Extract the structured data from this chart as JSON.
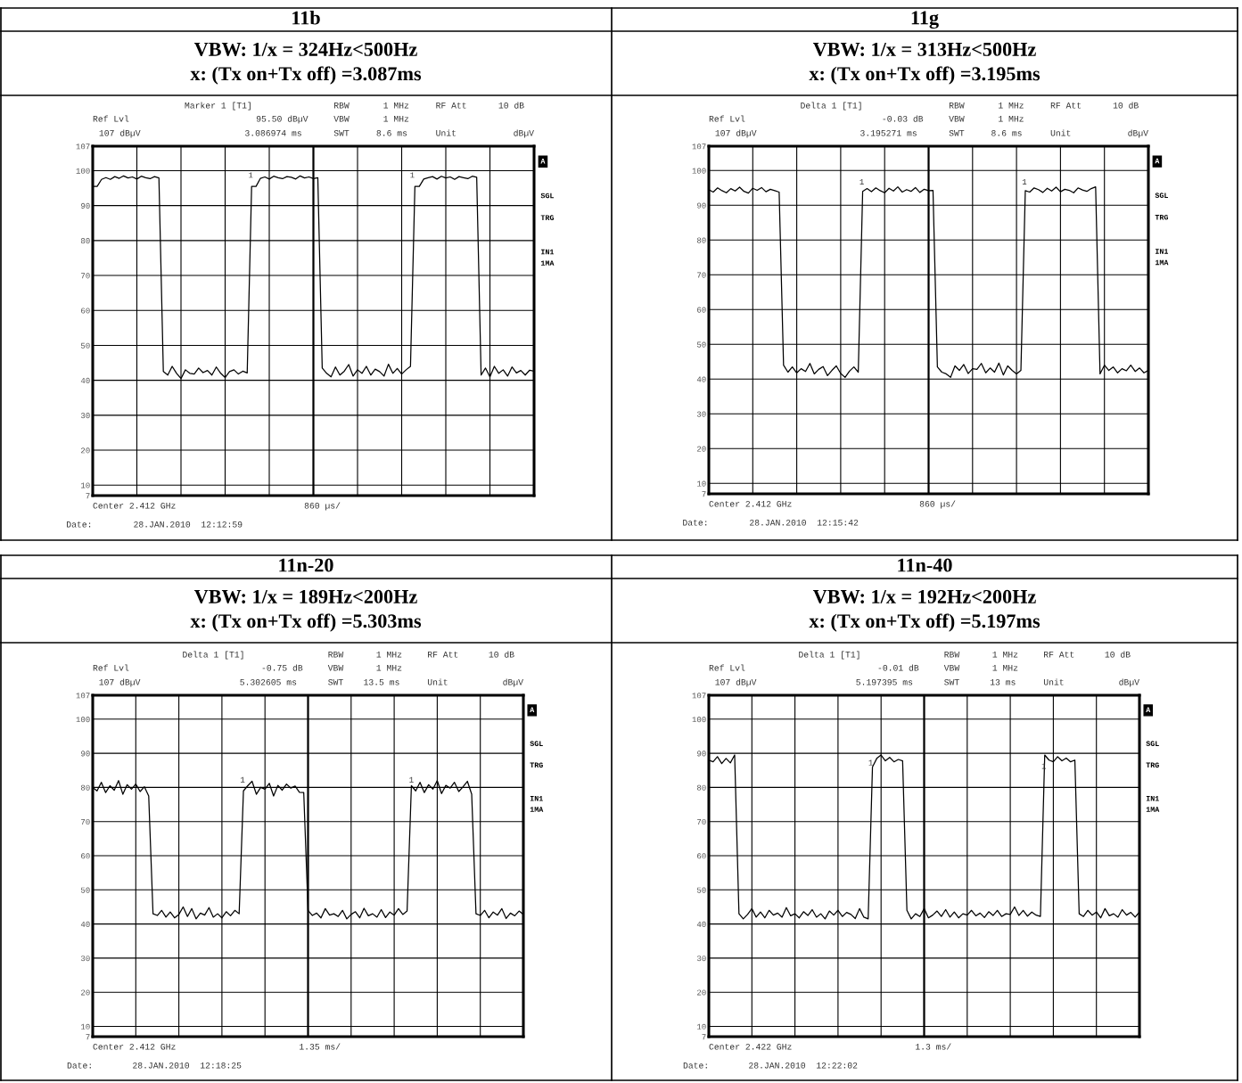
{
  "chart_data": [
    {
      "type": "line",
      "title": "11b",
      "subtitle": "VBW: 1/x = 324Hz<500Hz\nx: (Tx on+Tx off) =3.087ms",
      "color": "#000000",
      "ylim": [
        7,
        107
      ],
      "yticks": [
        7,
        10,
        20,
        30,
        40,
        50,
        60,
        70,
        80,
        90,
        100,
        107
      ],
      "grid": true,
      "tick_labels": "y",
      "categories": [
        null,
        null,
        null,
        null,
        null,
        null,
        null,
        null,
        null,
        null,
        null,
        null,
        null,
        null,
        null,
        null,
        null,
        null,
        null,
        null,
        null,
        null,
        null,
        null,
        null,
        null,
        null,
        null,
        null,
        null,
        null,
        null,
        null,
        null,
        null,
        null,
        null,
        null,
        null,
        null,
        null,
        null,
        null,
        null,
        null,
        null,
        null,
        null,
        null,
        null,
        null,
        null,
        null,
        null,
        null,
        null,
        null,
        null,
        null,
        null,
        null,
        null,
        null,
        null,
        null,
        null,
        null,
        null,
        null,
        null,
        null,
        null,
        null,
        null,
        null,
        null,
        null,
        null,
        null,
        null,
        null,
        null,
        null,
        null,
        null,
        null,
        null,
        null,
        null,
        null,
        null,
        null,
        null,
        null,
        null,
        null,
        null,
        null,
        null,
        null,
        null
      ],
      "values": [
        95.5,
        95.5,
        97.5,
        98,
        97.5,
        98.3,
        97.8,
        98.5,
        97.9,
        98.2,
        97.6,
        98.4,
        98,
        97.7,
        98.3,
        97.9,
        42.5,
        41.5,
        44,
        42,
        40.5,
        43,
        42,
        41.8,
        43.5,
        42.2,
        42.8,
        41.5,
        43.8,
        42,
        40.8,
        42.5,
        43,
        41.8,
        42.6,
        42.1,
        95.5,
        95.5,
        97.8,
        98.2,
        97.6,
        98.4,
        98,
        97.7,
        98.3,
        98.1,
        97.6,
        98.5,
        97.9,
        98.2,
        97.7,
        98,
        43.5,
        42,
        41,
        43.8,
        41.5,
        42.6,
        44.5,
        41.2,
        43,
        42,
        44,
        41.5,
        43.2,
        42.5,
        41.2,
        44.6,
        42,
        43.4,
        41.8,
        43,
        44,
        95.5,
        95.5,
        97.6,
        98,
        98.3,
        97.6,
        98.4,
        97.9,
        98.2,
        97.5,
        98.3,
        98,
        97.7,
        98.4,
        98.1,
        41.5,
        43.5,
        41,
        44,
        42,
        43,
        41.2,
        43.8,
        42.1,
        42.8,
        41.5,
        42.9,
        42.6
      ],
      "annotations": [
        "Marker 1 [T1]",
        "RBW",
        "1 MHz",
        "RF Att",
        "10 dB",
        "Ref Lvl",
        "95.50 dBµV",
        "VBW",
        "1 MHz",
        "107 dBµV",
        "3.086974 ms",
        "SWT",
        "8.6 ms",
        "Unit",
        "dBµV",
        "A",
        "SGL",
        "TRG",
        "IN1",
        "1MA",
        "Center 2.412 GHz",
        "860 µs/",
        "Date:",
        "28.JAN.2010  12:12:59",
        "1",
        "1"
      ]
    },
    {
      "type": "line",
      "title": "11g",
      "subtitle": "VBW: 1/x = 313Hz<500Hz\nx: (Tx on+Tx off) =3.195ms",
      "color": "#000000",
      "ylim": [
        7,
        107
      ],
      "yticks": [
        7,
        10,
        20,
        30,
        40,
        50,
        60,
        70,
        80,
        90,
        100,
        107
      ],
      "grid": true,
      "tick_labels": "y",
      "categories": [
        null,
        null,
        null,
        null,
        null,
        null,
        null,
        null,
        null,
        null,
        null,
        null,
        null,
        null,
        null,
        null,
        null,
        null,
        null,
        null,
        null,
        null,
        null,
        null,
        null,
        null,
        null,
        null,
        null,
        null,
        null,
        null,
        null,
        null,
        null,
        null,
        null,
        null,
        null,
        null,
        null,
        null,
        null,
        null,
        null,
        null,
        null,
        null,
        null,
        null,
        null,
        null,
        null,
        null,
        null,
        null,
        null,
        null,
        null,
        null,
        null,
        null,
        null,
        null,
        null,
        null,
        null,
        null,
        null,
        null,
        null,
        null,
        null,
        null,
        null,
        null,
        null,
        null,
        null,
        null,
        null,
        null,
        null,
        null,
        null,
        null,
        null,
        null,
        null,
        null,
        null,
        null,
        null,
        null,
        null,
        null,
        null,
        null,
        null,
        null,
        null
      ],
      "values": [
        94.5,
        93.8,
        95,
        94.2,
        93.6,
        94.8,
        94.1,
        95.2,
        94,
        93.5,
        94.9,
        94.3,
        95.1,
        93.9,
        94.6,
        94.2,
        93.8,
        44,
        42,
        43.5,
        41.8,
        43,
        42.2,
        44.5,
        41.5,
        42.8,
        43.6,
        41,
        42.5,
        43.8,
        41.6,
        40.5,
        42.3,
        43.5,
        42,
        94,
        94.8,
        93.9,
        95,
        94.2,
        93.6,
        94.9,
        94.1,
        95.3,
        93.8,
        94.5,
        94,
        95.1,
        93.7,
        94.6,
        94.2,
        94.3,
        43.5,
        42,
        41.5,
        40.5,
        43.8,
        42.5,
        44.2,
        41.6,
        43,
        42.8,
        44.5,
        41.8,
        43.2,
        42,
        44.6,
        41.2,
        43.8,
        42.5,
        41.5,
        42.5,
        94.2,
        93.8,
        95,
        94.5,
        93.7,
        94.9,
        94.1,
        95.2,
        93.9,
        94.6,
        94.3,
        93.6,
        95,
        94.4,
        94,
        94.8,
        95.3,
        41.5,
        44,
        42.5,
        43.5,
        41.8,
        43,
        42.4,
        44,
        42.2,
        43.2,
        41.8,
        42.5
      ],
      "annotations": [
        "Delta 1 [T1]",
        "RBW",
        "1 MHz",
        "RF Att",
        "10 dB",
        "Ref Lvl",
        "-0.03 dB",
        "VBW",
        "1 MHz",
        "107 dBµV",
        "3.195271 ms",
        "SWT",
        "8.6 ms",
        "Unit",
        "dBµV",
        "A",
        "SGL",
        "TRG",
        "IN1",
        "1MA",
        "Center 2.412 GHz",
        "860 µs/",
        "Date:",
        "28.JAN.2010  12:15:42",
        "1",
        "1"
      ]
    },
    {
      "type": "line",
      "title": "11n-20",
      "subtitle": "VBW: 1/x = 189Hz<200Hz\nx: (Tx on+Tx off) =5.303ms",
      "color": "#000000",
      "ylim": [
        7,
        107
      ],
      "yticks": [
        7,
        10,
        20,
        30,
        40,
        50,
        60,
        70,
        80,
        90,
        100,
        107
      ],
      "grid": true,
      "tick_labels": "y",
      "categories": [
        null,
        null,
        null,
        null,
        null,
        null,
        null,
        null,
        null,
        null,
        null,
        null,
        null,
        null,
        null,
        null,
        null,
        null,
        null,
        null,
        null,
        null,
        null,
        null,
        null,
        null,
        null,
        null,
        null,
        null,
        null,
        null,
        null,
        null,
        null,
        null,
        null,
        null,
        null,
        null,
        null,
        null,
        null,
        null,
        null,
        null,
        null,
        null,
        null,
        null,
        null,
        null,
        null,
        null,
        null,
        null,
        null,
        null,
        null,
        null,
        null,
        null,
        null,
        null,
        null,
        null,
        null,
        null,
        null,
        null,
        null,
        null,
        null,
        null,
        null,
        null,
        null,
        null,
        null,
        null,
        null,
        null,
        null,
        null,
        null,
        null,
        null,
        null,
        null,
        null,
        null,
        null,
        null,
        null,
        null,
        null,
        null,
        null,
        null,
        null,
        null
      ],
      "values": [
        80,
        79,
        81.5,
        78.5,
        80.5,
        79.2,
        82,
        78,
        80.8,
        79.5,
        81,
        78.8,
        80.2,
        77.5,
        43,
        42.5,
        44,
        42,
        43.5,
        41.8,
        42.8,
        45,
        42.2,
        44.5,
        41.5,
        43.2,
        42.6,
        44.8,
        42,
        43,
        41.8,
        43.6,
        42.4,
        44,
        43,
        79,
        80.5,
        81.8,
        78,
        80,
        79.5,
        81.2,
        77.5,
        80.6,
        79.2,
        81,
        79.8,
        80.4,
        78.6,
        78.5,
        44,
        42.5,
        43.2,
        41.8,
        44.5,
        42.6,
        43,
        42.2,
        44,
        41.5,
        42.8,
        43.6,
        41.8,
        44.6,
        42.4,
        43,
        42,
        44.2,
        41.9,
        43.5,
        42.6,
        44.5,
        42.8,
        43.8,
        80.5,
        79,
        81.5,
        78.5,
        80.8,
        79.5,
        82,
        78.2,
        80.6,
        79.8,
        81.5,
        78.8,
        80.2,
        81.8,
        78,
        43,
        42.5,
        44,
        41.8,
        43.5,
        42.6,
        44.5,
        41.6,
        43.2,
        42.4,
        43.8,
        42.8
      ],
      "annotations": [
        "Delta 1 [T1]",
        "RBW",
        "1 MHz",
        "RF Att",
        "10 dB",
        "Ref Lvl",
        "-0.75 dB",
        "VBW",
        "1 MHz",
        "107 dBµV",
        "5.302605 ms",
        "SWT",
        "13.5 ms",
        "Unit",
        "dBµV",
        "A",
        "SGL",
        "TRG",
        "IN1",
        "1MA",
        "Center 2.412 GHz",
        "1.35 ms/",
        "Date:",
        "28.JAN.2010  12:18:25",
        "1",
        "1"
      ]
    },
    {
      "type": "line",
      "title": "11n-40",
      "subtitle": "VBW: 1/x = 192Hz<200Hz\nx: (Tx on+Tx off) =5.197ms",
      "color": "#000000",
      "ylim": [
        7,
        107
      ],
      "yticks": [
        7,
        10,
        20,
        30,
        40,
        50,
        60,
        70,
        80,
        90,
        100,
        107
      ],
      "grid": true,
      "tick_labels": "y",
      "categories": [
        null,
        null,
        null,
        null,
        null,
        null,
        null,
        null,
        null,
        null,
        null,
        null,
        null,
        null,
        null,
        null,
        null,
        null,
        null,
        null,
        null,
        null,
        null,
        null,
        null,
        null,
        null,
        null,
        null,
        null,
        null,
        null,
        null,
        null,
        null,
        null,
        null,
        null,
        null,
        null,
        null,
        null,
        null,
        null,
        null,
        null,
        null,
        null,
        null,
        null,
        null,
        null,
        null,
        null,
        null,
        null,
        null,
        null,
        null,
        null,
        null,
        null,
        null,
        null,
        null,
        null,
        null,
        null,
        null,
        null,
        null,
        null,
        null,
        null,
        null,
        null,
        null,
        null,
        null,
        null,
        null,
        null,
        null,
        null,
        null,
        null,
        null,
        null,
        null,
        null,
        null,
        null,
        null,
        null,
        null,
        null,
        null,
        null,
        null,
        null,
        null
      ],
      "values": [
        88,
        87.5,
        89,
        87,
        88.5,
        87.2,
        89.5,
        43,
        41.5,
        42.8,
        44.5,
        42,
        43.5,
        41.8,
        44,
        42.6,
        43.2,
        42,
        44.8,
        42.4,
        43,
        41.8,
        43.6,
        42.5,
        44.2,
        42,
        43,
        41.5,
        43.8,
        42.6,
        44,
        42.2,
        43.4,
        42.8,
        41.6,
        44.5,
        42,
        41.5,
        86,
        88.5,
        89.5,
        87.8,
        88.8,
        87.5,
        88.2,
        87.8,
        44,
        41.5,
        43,
        42.2,
        44.5,
        41.8,
        42.6,
        43.8,
        42.2,
        44.2,
        42,
        43.5,
        41.8,
        43,
        42.6,
        44,
        42.4,
        43.2,
        41.9,
        43.6,
        42.5,
        44,
        42.2,
        43,
        42.8,
        45,
        42.5,
        44,
        42.3,
        43.5,
        42.6,
        42.2,
        89.5,
        88,
        87.5,
        89,
        87.8,
        88.6,
        87.5,
        88,
        43,
        42.2,
        44,
        42.6,
        43.5,
        41.8,
        44.5,
        42.4,
        43,
        42,
        44.2,
        42.6,
        43.4,
        42,
        43.5
      ],
      "annotations": [
        "Delta 1 [T1]",
        "RBW",
        "1 MHz",
        "RF Att",
        "10 dB",
        "Ref Lvl",
        "-0.01 dB",
        "VBW",
        "1 MHz",
        "107 dBµV",
        "5.197395 ms",
        "SWT",
        "13 ms",
        "Unit",
        "dBµV",
        "A",
        "SGL",
        "TRG",
        "IN1",
        "1MA",
        "Center 2.422 GHz",
        "1.3 ms/",
        "Date:",
        "28.JAN.2010  12:22:02",
        "1",
        "1"
      ]
    }
  ]
}
